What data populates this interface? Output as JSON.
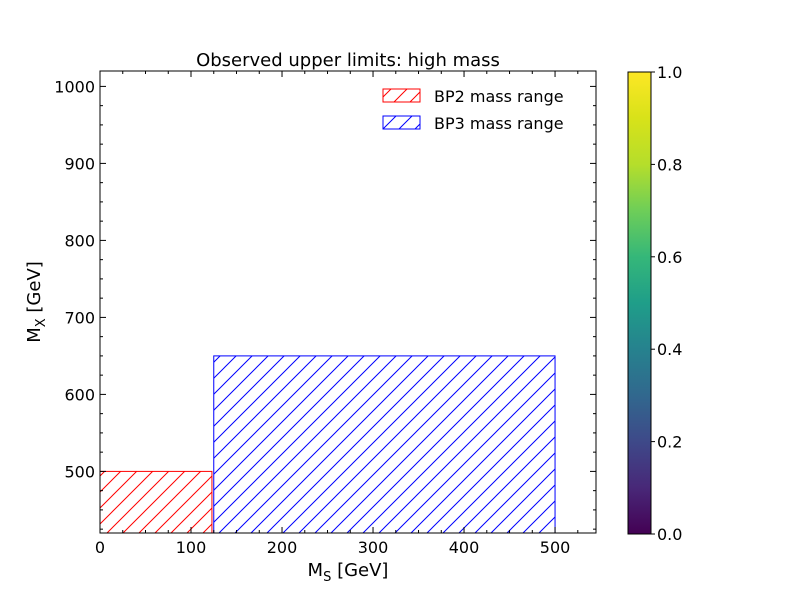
{
  "chart_data": {
    "type": "area",
    "title": "Observed upper limits: high mass",
    "xlabel": {
      "main": "M",
      "sub": "S",
      "unit": " [GeV]"
    },
    "ylabel": {
      "main": "M",
      "sub": "X",
      "unit": " [GeV]"
    },
    "xlim": [
      0,
      545
    ],
    "ylim": [
      420,
      1020
    ],
    "xticks": [
      0,
      100,
      200,
      300,
      400,
      500
    ],
    "yticks": [
      500,
      600,
      700,
      800,
      900,
      1000
    ],
    "grid": false,
    "legend_position": "top-right",
    "series": [
      {
        "name": "BP2 mass range",
        "color": "#ff0000",
        "hatch": "//",
        "x_range": [
          0,
          123
        ],
        "y_range": [
          420,
          500
        ]
      },
      {
        "name": "BP3 mass range",
        "color": "#0000ff",
        "hatch": "//",
        "x_range": [
          125,
          500
        ],
        "y_range": [
          420,
          650
        ]
      }
    ],
    "colorbar": {
      "colormap": "viridis",
      "range": [
        0.0,
        1.0
      ],
      "ticks": [
        "0.0",
        "0.2",
        "0.4",
        "0.6",
        "0.8",
        "1.0"
      ]
    }
  }
}
